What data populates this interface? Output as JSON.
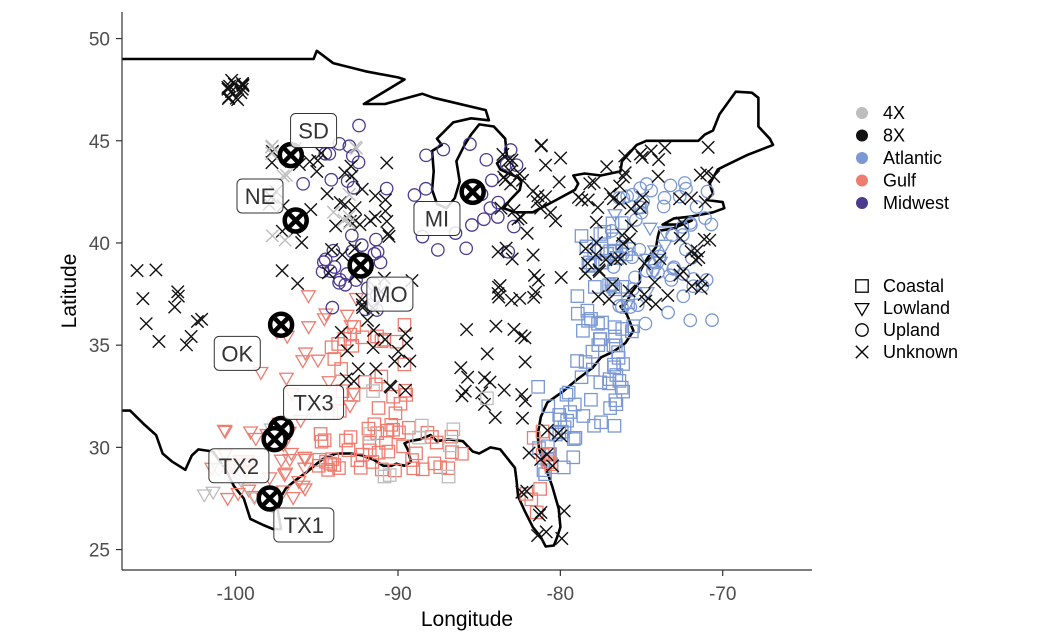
{
  "chart_data": {
    "type": "scatter",
    "xlabel": "Longitude",
    "ylabel": "Latitude",
    "xlim": [
      -107,
      -64.5
    ],
    "ylim": [
      24,
      51.3
    ],
    "x_ticks": [
      -100,
      -90,
      -80,
      -70
    ],
    "y_ticks": [
      25,
      30,
      35,
      40,
      45,
      50
    ],
    "x_tick_labels": [
      "-100",
      "-90",
      "-80",
      "-70"
    ],
    "y_tick_labels": [
      "25",
      "30",
      "35",
      "40",
      "45",
      "50"
    ],
    "grid": false,
    "legend_position": "right",
    "colors": {
      "4X": "#bdbdbd",
      "8X": "#111111",
      "Atlantic": "#7b98d4",
      "Gulf": "#ee7d70",
      "Midwest": "#4b3b8f"
    },
    "color_legend": [
      "4X",
      "8X",
      "Atlantic",
      "Gulf",
      "Midwest"
    ],
    "shape_legend": [
      {
        "label": "Coastal",
        "shape": "square"
      },
      {
        "label": "Lowland",
        "shape": "triangle"
      },
      {
        "label": "Upland",
        "shape": "circle"
      },
      {
        "label": "Unknown",
        "shape": "cross"
      }
    ],
    "sites": [
      {
        "label": "SD",
        "x": -96.6,
        "y": 44.3,
        "label_x": -95.2,
        "label_y": 45.5
      },
      {
        "label": "NE",
        "x": -96.3,
        "y": 41.1,
        "label_x": -98.5,
        "label_y": 42.3
      },
      {
        "label": "MI",
        "x": -85.4,
        "y": 42.5,
        "label_x": -87.6,
        "label_y": 41.2
      },
      {
        "label": "MO",
        "x": -92.3,
        "y": 38.9,
        "label_x": -90.5,
        "label_y": 37.5
      },
      {
        "label": "OK",
        "x": -97.2,
        "y": 36.0,
        "label_x": -99.9,
        "label_y": 34.6
      },
      {
        "label": "TX3",
        "x": -97.2,
        "y": 30.9,
        "label_x": -95.2,
        "label_y": 32.2
      },
      {
        "label": "TX2",
        "x": -97.6,
        "y": 30.4,
        "label_x": -99.8,
        "label_y": 29.1
      },
      {
        "label": "TX1",
        "x": -97.9,
        "y": 27.5,
        "label_x": -95.8,
        "label_y": 26.2
      }
    ],
    "clusters": [
      {
        "region": "Atlantic",
        "shape": "square",
        "n": 70,
        "x": [
          -79,
          -75.5
        ],
        "y": [
          31,
          41
        ]
      },
      {
        "region": "Atlantic",
        "shape": "circle",
        "n": 60,
        "x": [
          -77,
          -70.5
        ],
        "y": [
          36,
          43
        ]
      },
      {
        "region": "Atlantic",
        "shape": "square",
        "n": 25,
        "x": [
          -81.5,
          -78.5
        ],
        "y": [
          28.5,
          33
        ]
      },
      {
        "region": "Atlantic",
        "shape": "triangle",
        "n": 12,
        "x": [
          -77,
          -73.5
        ],
        "y": [
          37,
          41.5
        ]
      },
      {
        "region": "Gulf",
        "shape": "square",
        "n": 45,
        "x": [
          -95,
          -86
        ],
        "y": [
          28.8,
          31
        ]
      },
      {
        "region": "Gulf",
        "shape": "triangle",
        "n": 40,
        "x": [
          -101.5,
          -95.5
        ],
        "y": [
          27.5,
          31.5
        ]
      },
      {
        "region": "Gulf",
        "shape": "square",
        "n": 30,
        "x": [
          -94.5,
          -89
        ],
        "y": [
          31,
          36
        ]
      },
      {
        "region": "Gulf",
        "shape": "triangle",
        "n": 18,
        "x": [
          -98.5,
          -92.5
        ],
        "y": [
          32,
          37.5
        ]
      },
      {
        "region": "Gulf",
        "shape": "square",
        "n": 10,
        "x": [
          -82.5,
          -80.5
        ],
        "y": [
          26,
          31
        ]
      },
      {
        "region": "Midwest",
        "shape": "circle",
        "n": 25,
        "x": [
          -95,
          -91
        ],
        "y": [
          36.5,
          40.5
        ]
      },
      {
        "region": "Midwest",
        "shape": "circle",
        "n": 22,
        "x": [
          -89,
          -82.5
        ],
        "y": [
          39.5,
          45.5
        ]
      },
      {
        "region": "Midwest",
        "shape": "circle",
        "n": 12,
        "x": [
          -96,
          -90
        ],
        "y": [
          42,
          46
        ]
      },
      {
        "region": "8X",
        "shape": "cross",
        "n": 110,
        "x": [
          -84,
          -70.5
        ],
        "y": [
          37,
          45
        ]
      },
      {
        "region": "8X",
        "shape": "cross",
        "n": 45,
        "x": [
          -98,
          -90
        ],
        "y": [
          38,
          45
        ]
      },
      {
        "region": "8X",
        "shape": "cross",
        "n": 25,
        "x": [
          -93.5,
          -89
        ],
        "y": [
          32.5,
          38.5
        ]
      },
      {
        "region": "8X",
        "shape": "cross",
        "n": 20,
        "x": [
          -86.5,
          -82
        ],
        "y": [
          31,
          36.5
        ]
      },
      {
        "region": "8X",
        "shape": "cross",
        "n": 15,
        "x": [
          -100.5,
          -99.5
        ],
        "y": [
          47,
          48
        ]
      },
      {
        "region": "8X",
        "shape": "cross",
        "n": 12,
        "x": [
          -106.5,
          -101
        ],
        "y": [
          35,
          39
        ]
      },
      {
        "region": "8X",
        "shape": "cross",
        "n": 15,
        "x": [
          -83,
          -79.5
        ],
        "y": [
          25.5,
          31
        ]
      },
      {
        "region": "4X",
        "shape": "cross",
        "n": 14,
        "x": [
          -98,
          -92
        ],
        "y": [
          40,
          46
        ]
      },
      {
        "region": "4X",
        "shape": "square",
        "n": 10,
        "x": [
          -92,
          -84
        ],
        "y": [
          28.5,
          33
        ]
      },
      {
        "region": "4X",
        "shape": "triangle",
        "n": 8,
        "x": [
          -102,
          -97
        ],
        "y": [
          27,
          31
        ]
      }
    ],
    "map_outline": [
      [
        -123,
        49
      ],
      [
        -95.2,
        49
      ],
      [
        -95,
        49.4
      ],
      [
        -94,
        48.8
      ],
      [
        -92,
        48.4
      ],
      [
        -90,
        48.1
      ],
      [
        -89.6,
        48.0
      ],
      [
        -92.1,
        46.8
      ],
      [
        -90.8,
        46.8
      ],
      [
        -88.5,
        47.3
      ],
      [
        -87.8,
        47.1
      ],
      [
        -84.6,
        46.5
      ],
      [
        -84.4,
        46.0
      ],
      [
        -85.5,
        46.1
      ],
      [
        -86.6,
        45.9
      ],
      [
        -87.6,
        45.1
      ],
      [
        -87.3,
        44.8
      ],
      [
        -87.9,
        44.5
      ],
      [
        -87.8,
        43.5
      ],
      [
        -87.9,
        42.6
      ],
      [
        -87.6,
        41.9
      ],
      [
        -87.0,
        41.7
      ],
      [
        -86.5,
        42.2
      ],
      [
        -86.2,
        43.0
      ],
      [
        -86.4,
        44.0
      ],
      [
        -85.9,
        44.8
      ],
      [
        -85.5,
        45.3
      ],
      [
        -85.0,
        45.8
      ],
      [
        -84.1,
        45.7
      ],
      [
        -83.4,
        45.1
      ],
      [
        -83.3,
        44.3
      ],
      [
        -83.9,
        43.9
      ],
      [
        -83.7,
        43.6
      ],
      [
        -82.6,
        43.2
      ],
      [
        -82.4,
        43.0
      ],
      [
        -82.5,
        42.6
      ],
      [
        -83.1,
        42.1
      ],
      [
        -83.5,
        41.7
      ],
      [
        -82.8,
        41.5
      ],
      [
        -81.7,
        41.5
      ],
      [
        -80.5,
        42.0
      ],
      [
        -79.1,
        42.6
      ],
      [
        -78.9,
        42.9
      ],
      [
        -79.2,
        43.3
      ],
      [
        -78.5,
        43.4
      ],
      [
        -77.5,
        43.3
      ],
      [
        -76.3,
        43.5
      ],
      [
        -76.2,
        44.0
      ],
      [
        -75.3,
        44.8
      ],
      [
        -74.7,
        45.0
      ],
      [
        -71.5,
        45.0
      ],
      [
        -71.1,
        45.3
      ],
      [
        -70.6,
        45.5
      ],
      [
        -70.2,
        46.3
      ],
      [
        -69.2,
        47.4
      ],
      [
        -68.2,
        47.35
      ],
      [
        -67.8,
        47.1
      ],
      [
        -67.8,
        45.7
      ],
      [
        -67.1,
        45.1
      ],
      [
        -66.9,
        44.8
      ],
      [
        -68.5,
        44.3
      ],
      [
        -69.8,
        43.8
      ],
      [
        -70.3,
        43.6
      ],
      [
        -70.8,
        42.9
      ],
      [
        -70.6,
        42.4
      ],
      [
        -71.0,
        42.1
      ],
      [
        -70.0,
        42.0
      ],
      [
        -69.9,
        41.7
      ],
      [
        -70.6,
        41.5
      ],
      [
        -71.9,
        41.3
      ],
      [
        -73.0,
        41.2
      ],
      [
        -73.7,
        40.9
      ],
      [
        -72.8,
        40.9
      ],
      [
        -71.9,
        41.1
      ],
      [
        -73.1,
        40.7
      ],
      [
        -73.9,
        40.6
      ],
      [
        -74.0,
        40.3
      ],
      [
        -74.1,
        39.8
      ],
      [
        -74.6,
        39.3
      ],
      [
        -74.9,
        38.9
      ],
      [
        -75.1,
        38.6
      ],
      [
        -75.1,
        38.1
      ],
      [
        -75.6,
        37.6
      ],
      [
        -76.0,
        37.0
      ],
      [
        -76.3,
        36.9
      ],
      [
        -75.9,
        36.5
      ],
      [
        -75.5,
        35.7
      ],
      [
        -76.0,
        35.1
      ],
      [
        -76.7,
        34.7
      ],
      [
        -77.5,
        34.4
      ],
      [
        -78.0,
        33.9
      ],
      [
        -79.0,
        33.3
      ],
      [
        -79.9,
        32.7
      ],
      [
        -80.8,
        32.2
      ],
      [
        -81.2,
        31.5
      ],
      [
        -81.4,
        30.6
      ],
      [
        -81.3,
        29.9
      ],
      [
        -80.9,
        29.0
      ],
      [
        -80.5,
        28.1
      ],
      [
        -80.1,
        27.0
      ],
      [
        -80.0,
        26.1
      ],
      [
        -80.2,
        25.6
      ],
      [
        -80.4,
        25.2
      ],
      [
        -80.9,
        25.15
      ],
      [
        -81.2,
        25.6
      ],
      [
        -81.7,
        26.1
      ],
      [
        -82.2,
        26.9
      ],
      [
        -82.6,
        27.6
      ],
      [
        -82.7,
        28.4
      ],
      [
        -82.8,
        29.0
      ],
      [
        -83.2,
        29.4
      ],
      [
        -83.7,
        29.9
      ],
      [
        -84.3,
        30.0
      ],
      [
        -85.0,
        29.7
      ],
      [
        -85.4,
        29.8
      ],
      [
        -86.0,
        30.3
      ],
      [
        -86.9,
        30.4
      ],
      [
        -87.6,
        30.3
      ],
      [
        -88.0,
        30.6
      ],
      [
        -88.6,
        30.4
      ],
      [
        -89.3,
        30.3
      ],
      [
        -89.6,
        30.2
      ],
      [
        -89.4,
        29.9
      ],
      [
        -89.2,
        29.3
      ],
      [
        -89.6,
        29.1
      ],
      [
        -90.1,
        29.2
      ],
      [
        -90.4,
        29.1
      ],
      [
        -90.9,
        29.1
      ],
      [
        -91.5,
        29.4
      ],
      [
        -92.2,
        29.6
      ],
      [
        -92.9,
        29.7
      ],
      [
        -93.8,
        29.7
      ],
      [
        -94.5,
        29.5
      ],
      [
        -95.0,
        29.2
      ],
      [
        -95.6,
        28.8
      ],
      [
        -96.3,
        28.4
      ],
      [
        -96.9,
        28.0
      ],
      [
        -97.2,
        27.6
      ],
      [
        -97.4,
        26.9
      ],
      [
        -97.2,
        26.0
      ],
      [
        -97.7,
        26.0
      ],
      [
        -98.3,
        26.2
      ],
      [
        -99.1,
        26.5
      ],
      [
        -99.5,
        27.5
      ],
      [
        -100.1,
        28.1
      ],
      [
        -100.6,
        28.9
      ],
      [
        -101.4,
        29.8
      ],
      [
        -102.3,
        29.9
      ],
      [
        -102.7,
        29.6
      ],
      [
        -103.1,
        28.9
      ],
      [
        -103.9,
        29.3
      ],
      [
        -104.5,
        29.7
      ],
      [
        -104.9,
        30.6
      ],
      [
        -105.6,
        31.1
      ],
      [
        -106.5,
        31.8
      ],
      [
        -108,
        31.8
      ],
      [
        -111,
        31.3
      ]
    ]
  }
}
